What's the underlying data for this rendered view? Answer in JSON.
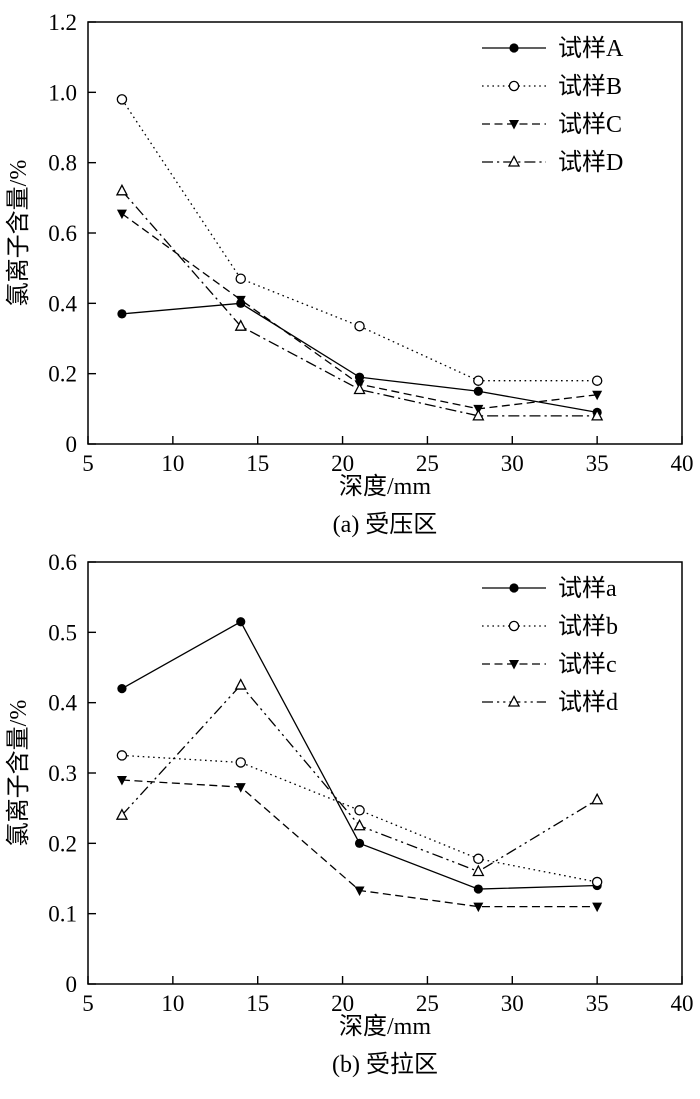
{
  "page": {
    "background": "#ffffff",
    "ink_color": "#000000"
  },
  "chart_data": [
    {
      "type": "line",
      "caption": "(a) 受压区",
      "xlabel": "深度/mm",
      "ylabel": "氯离子含量/%",
      "xlim": [
        5,
        40
      ],
      "ylim": [
        0,
        1.2
      ],
      "xticks": [
        5,
        10,
        15,
        20,
        25,
        30,
        35,
        40
      ],
      "xtick_labels": [
        "5",
        "10",
        "15",
        "20",
        "25",
        "30",
        "35",
        "40"
      ],
      "yticks": [
        0,
        0.2,
        0.4,
        0.6,
        0.8,
        1.0,
        1.2
      ],
      "ytick_labels": [
        "0",
        "0.2",
        "0.4",
        "0.6",
        "0.8",
        "1.0",
        "1.2"
      ],
      "grid": false,
      "legend_position": "top-right",
      "x": [
        7,
        14,
        21,
        28,
        35
      ],
      "series": [
        {
          "name": "试样A",
          "line": "solid",
          "marker": "filled-circle",
          "values": [
            0.37,
            0.4,
            0.19,
            0.15,
            0.09
          ]
        },
        {
          "name": "试样B",
          "line": "dotted",
          "marker": "open-circle",
          "values": [
            0.98,
            0.47,
            0.335,
            0.18,
            0.18
          ]
        },
        {
          "name": "试样C",
          "line": "dashed",
          "marker": "filled-triangle-down",
          "values": [
            0.655,
            0.41,
            0.17,
            0.1,
            0.14
          ]
        },
        {
          "name": "试样D",
          "line": "dash-dot",
          "marker": "open-triangle-up",
          "values": [
            0.72,
            0.335,
            0.155,
            0.08,
            0.08
          ]
        }
      ]
    },
    {
      "type": "line",
      "caption": "(b) 受拉区",
      "xlabel": "深度/mm",
      "ylabel": "氯离子含量/%",
      "xlim": [
        5,
        40
      ],
      "ylim": [
        0,
        0.6
      ],
      "xticks": [
        5,
        10,
        15,
        20,
        25,
        30,
        35,
        40
      ],
      "xtick_labels": [
        "5",
        "10",
        "15",
        "20",
        "25",
        "30",
        "35",
        "40"
      ],
      "yticks": [
        0,
        0.1,
        0.2,
        0.3,
        0.4,
        0.5,
        0.6
      ],
      "ytick_labels": [
        "0",
        "0.1",
        "0.2",
        "0.3",
        "0.4",
        "0.5",
        "0.6"
      ],
      "grid": false,
      "legend_position": "top-right",
      "x": [
        7,
        14,
        21,
        28,
        35
      ],
      "series": [
        {
          "name": "试样a",
          "line": "solid",
          "marker": "filled-circle",
          "values": [
            0.42,
            0.515,
            0.2,
            0.135,
            0.14
          ]
        },
        {
          "name": "试样b",
          "line": "dotted",
          "marker": "open-circle",
          "values": [
            0.325,
            0.315,
            0.247,
            0.178,
            0.145
          ]
        },
        {
          "name": "试样c",
          "line": "dashed",
          "marker": "filled-triangle-down",
          "values": [
            0.29,
            0.28,
            0.133,
            0.11,
            0.11
          ]
        },
        {
          "name": "试样d",
          "line": "dash-dot-dot",
          "marker": "open-triangle-up",
          "values": [
            0.24,
            0.425,
            0.225,
            0.16,
            0.262
          ]
        }
      ]
    }
  ]
}
